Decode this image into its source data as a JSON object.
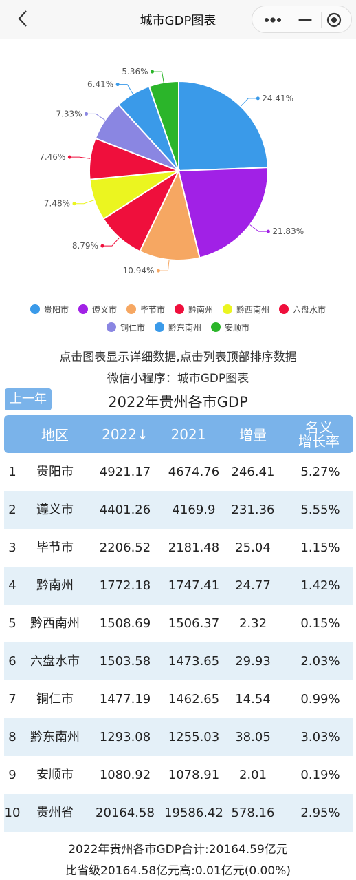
{
  "navbar": {
    "title": "城市GDP图表"
  },
  "chart_data": {
    "type": "pie",
    "categories": [
      "贵阳市",
      "遵义市",
      "毕节市",
      "黔南州",
      "黔西南州",
      "六盘水市",
      "铜仁市",
      "黔东南州",
      "安顺市"
    ],
    "values": [
      24.41,
      21.83,
      10.94,
      8.79,
      7.48,
      7.46,
      7.33,
      6.41,
      5.36
    ],
    "labels": [
      "24.41%",
      "21.83%",
      "10.94%",
      "8.79%",
      "7.48%",
      "7.46%",
      "7.33%",
      "6.41%",
      "5.36%"
    ],
    "colors": [
      "#3a9ae9",
      "#a121e6",
      "#f6a762",
      "#ef0f3c",
      "#ebf520",
      "#ef0f3c",
      "#8a86e2",
      "#3a9ae9",
      "#2bb52a"
    ],
    "legend_position": "bottom"
  },
  "hints": {
    "line1": "点击图表显示详细数据,点击列表顶部排序数据",
    "line2": "微信小程序：城市GDP图表"
  },
  "prev_button": "上一年",
  "table_title": "2022年贵州各市GDP",
  "table": {
    "headers": {
      "region": "地区",
      "y2022": "2022↓",
      "y2021": "2021",
      "increase": "增量",
      "rate_line1": "名义",
      "rate_line2": "增长率"
    },
    "rows": [
      {
        "idx": "1",
        "name": "贵阳市",
        "y2022": "4921.17",
        "y2021": "4674.76",
        "inc": "246.41",
        "rate": "5.27%"
      },
      {
        "idx": "2",
        "name": "遵义市",
        "y2022": "4401.26",
        "y2021": "4169.9",
        "inc": "231.36",
        "rate": "5.55%"
      },
      {
        "idx": "3",
        "name": "毕节市",
        "y2022": "2206.52",
        "y2021": "2181.48",
        "inc": "25.04",
        "rate": "1.15%"
      },
      {
        "idx": "4",
        "name": "黔南州",
        "y2022": "1772.18",
        "y2021": "1747.41",
        "inc": "24.77",
        "rate": "1.42%"
      },
      {
        "idx": "5",
        "name": "黔西南州",
        "y2022": "1508.69",
        "y2021": "1506.37",
        "inc": "2.32",
        "rate": "0.15%"
      },
      {
        "idx": "6",
        "name": "六盘水市",
        "y2022": "1503.58",
        "y2021": "1473.65",
        "inc": "29.93",
        "rate": "2.03%"
      },
      {
        "idx": "7",
        "name": "铜仁市",
        "y2022": "1477.19",
        "y2021": "1462.65",
        "inc": "14.54",
        "rate": "0.99%"
      },
      {
        "idx": "8",
        "name": "黔东南州",
        "y2022": "1293.08",
        "y2021": "1255.03",
        "inc": "38.05",
        "rate": "3.03%"
      },
      {
        "idx": "9",
        "name": "安顺市",
        "y2022": "1080.92",
        "y2021": "1078.91",
        "inc": "2.01",
        "rate": "0.19%"
      },
      {
        "idx": "10",
        "name": "贵州省",
        "y2022": "20164.58",
        "y2021": "19586.42",
        "inc": "578.16",
        "rate": "2.95%"
      }
    ]
  },
  "summary": {
    "line1": "2022年贵州各市GDP合计:20164.59亿元",
    "line2": "比省级20164.58亿元高:0.01亿元(0.00%)"
  },
  "icons": {
    "back": "chevron-left-icon",
    "more": "more-dots-icon",
    "minimize": "minimize-icon",
    "close": "target-close-icon"
  }
}
